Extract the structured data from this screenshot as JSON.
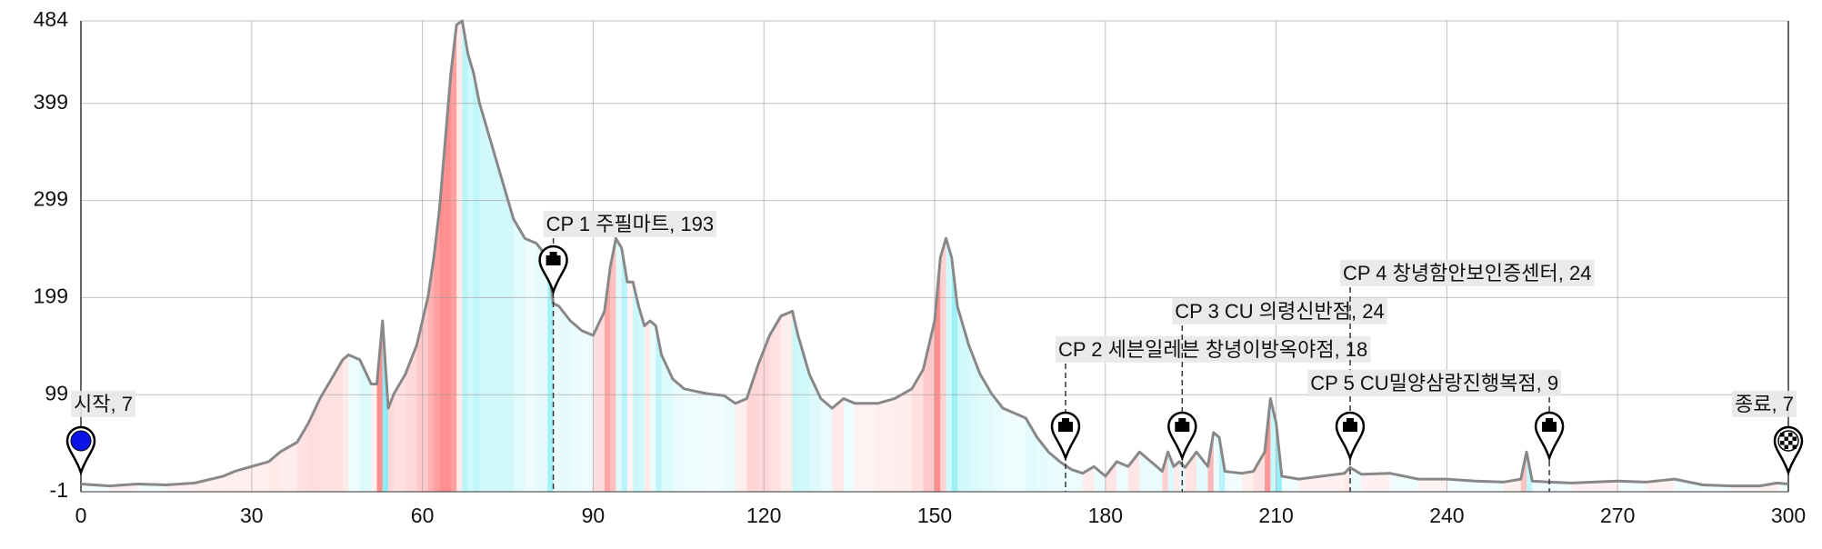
{
  "chart_data": {
    "type": "line",
    "x": [
      0,
      5,
      10,
      15,
      20,
      25,
      27,
      30,
      33,
      35,
      38,
      40,
      42,
      44,
      46,
      47,
      49,
      51,
      52,
      53,
      54,
      55,
      57,
      59,
      61,
      62,
      63,
      64,
      65,
      66,
      67,
      68,
      69,
      70,
      72,
      74,
      76,
      78,
      80,
      82,
      83,
      84,
      86,
      88,
      90,
      92,
      93,
      94,
      95,
      96,
      97,
      98,
      99,
      100,
      101,
      102,
      104,
      106,
      110,
      113,
      115,
      117,
      119,
      121,
      123,
      125,
      126,
      128,
      130,
      132,
      134,
      136,
      140,
      143,
      146,
      148,
      150,
      151,
      152,
      153,
      154,
      156,
      158,
      160,
      162,
      164,
      166,
      168,
      170,
      172,
      174,
      176,
      178,
      180,
      182,
      184,
      186,
      188,
      190,
      191,
      192,
      193,
      194,
      196,
      198,
      199,
      200,
      201,
      204,
      206,
      208,
      209,
      210,
      211,
      214,
      218,
      222,
      223,
      225,
      230,
      235,
      240,
      245,
      250,
      253,
      254,
      255,
      258,
      262,
      270,
      275,
      280,
      285,
      290,
      295,
      298,
      300
    ],
    "values": [
      7,
      5,
      7,
      6,
      8,
      15,
      20,
      25,
      30,
      40,
      50,
      70,
      95,
      115,
      135,
      140,
      135,
      110,
      110,
      175,
      85,
      100,
      120,
      150,
      200,
      240,
      290,
      360,
      430,
      480,
      484,
      450,
      430,
      400,
      360,
      320,
      280,
      260,
      255,
      240,
      193,
      190,
      175,
      165,
      160,
      185,
      230,
      260,
      250,
      215,
      215,
      190,
      170,
      175,
      170,
      140,
      115,
      105,
      100,
      98,
      90,
      95,
      130,
      160,
      180,
      185,
      160,
      120,
      95,
      85,
      95,
      90,
      90,
      95,
      105,
      125,
      175,
      240,
      260,
      240,
      190,
      150,
      120,
      100,
      85,
      80,
      75,
      55,
      40,
      30,
      22,
      18,
      25,
      15,
      30,
      25,
      40,
      30,
      20,
      40,
      25,
      30,
      24,
      40,
      25,
      60,
      55,
      20,
      18,
      20,
      40,
      95,
      70,
      15,
      12,
      15,
      18,
      24,
      17,
      18,
      12,
      12,
      10,
      9,
      12,
      40,
      10,
      9,
      8,
      10,
      9,
      12,
      6,
      5,
      5,
      8,
      7
    ],
    "color": "#888888",
    "xlim": [
      0,
      300
    ],
    "xticks": [
      0,
      30,
      60,
      90,
      120,
      150,
      180,
      210,
      240,
      270,
      300
    ],
    "ylim": [
      -1,
      484
    ],
    "yticks": [
      -1,
      99,
      199,
      299,
      399,
      484
    ],
    "grid": true,
    "annotations": [
      {
        "text": "시작, 7",
        "x": 0
      },
      {
        "text": "CP 1 주필마트, 193",
        "x": 83
      },
      {
        "text": "CP 2 세븐일레븐 창녕이방옥야점, 18",
        "x": 173
      },
      {
        "text": "CP 3 CU 의령신반점, 24",
        "x": 193.5
      },
      {
        "text": "CP 4 창녕함안보인증센터, 24",
        "x": 223
      },
      {
        "text": "CP 5 CU밀양삼랑진행복점, 9",
        "x": 258
      },
      {
        "text": "종료, 7",
        "x": 300
      }
    ]
  }
}
